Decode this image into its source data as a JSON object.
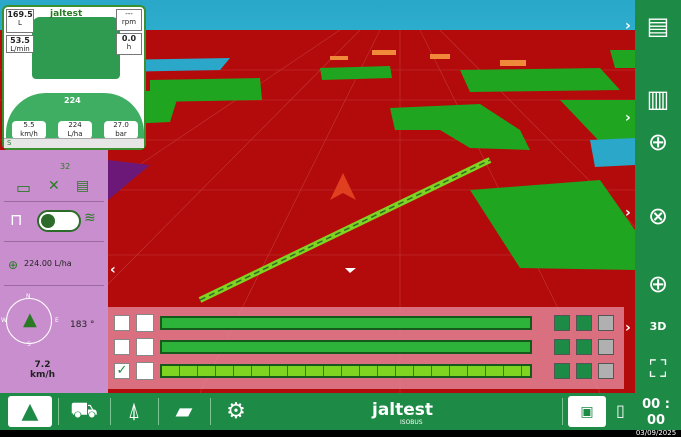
{
  "hud": {
    "tank_value": "169.5",
    "tank_unit": "L",
    "flow_value": "53.5",
    "flow_unit": "L/min",
    "rpm_label": "rpm",
    "rpm_top": "---",
    "rpm_value": "0.0",
    "rpm_unit": "h",
    "brand_small": "jaltest",
    "center_value": "224",
    "gauges": [
      {
        "value": "5.5",
        "unit": "km/h"
      },
      {
        "value": "224",
        "unit": "L/ha"
      },
      {
        "value": "27.0",
        "unit": "bar"
      }
    ],
    "footer_text": "S"
  },
  "left_panel": {
    "satellites": "32",
    "rate_text": "224.00 L/ha",
    "heading": "183 °",
    "compass_n": "N",
    "compass_s": "S",
    "compass_w": "W",
    "compass_e": "E",
    "speed_value": "7.2",
    "speed_unit": "km/h"
  },
  "sections": [
    {
      "checked": false,
      "segmented": false
    },
    {
      "checked": false,
      "segmented": false
    },
    {
      "checked": true,
      "segmented": true
    }
  ],
  "right_bar": {
    "btn_3d": "3D"
  },
  "bottom_bar": {
    "brand": "jaltest",
    "brand_sub": "ISOBUS",
    "time": "00 : 00",
    "date": "03/09/2025"
  },
  "colors": {
    "accent": "#1d8a45",
    "field_red": "#b30b0b",
    "coverage_green": "#1fa51f",
    "panel_purple": "#c88ecd"
  }
}
